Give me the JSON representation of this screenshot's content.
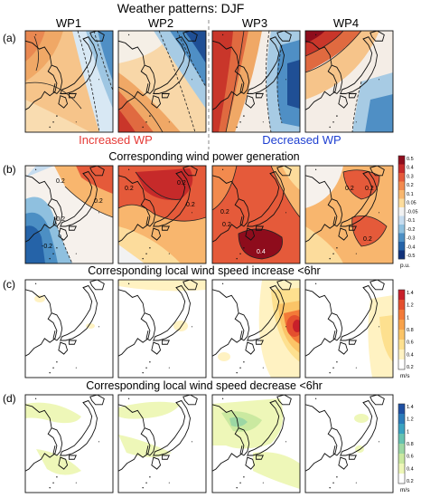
{
  "figure_title": "Weather patterns: DJF",
  "panel_letters": [
    "(a)",
    "(b)",
    "(c)",
    "(d)"
  ],
  "columns": [
    "WP1",
    "WP2",
    "WP3",
    "WP4"
  ],
  "group_labels": {
    "increased": "Increased WP",
    "decreased": "Decreased WP",
    "increased_color": "#e53935",
    "decreased_color": "#1e3fd1"
  },
  "row_titles": {
    "b": "Corresponding wind power generation",
    "c": "Corresponding local wind speed increase <6hr",
    "d": "Corresponding local wind speed decrease <6hr"
  },
  "colorbars": [
    {
      "row": "b",
      "unit": "p.u.",
      "ticks": [
        "0.5",
        "0.4",
        "0.3",
        "0.2",
        "0.1",
        "0.05",
        "-0.05",
        "-0.1",
        "-0.2",
        "-0.3",
        "-0.4",
        "-0.5"
      ],
      "colors": [
        "#8e0c1c",
        "#c62a2a",
        "#e55a3a",
        "#f28a4e",
        "#f8b66e",
        "#fcdc9c",
        "#f2f2f2",
        "#c6dcef",
        "#8fc0df",
        "#4c8fc4",
        "#2563a8",
        "#11317a"
      ]
    },
    {
      "row": "c",
      "unit": "m/s",
      "ticks": [
        "1.4",
        "1.2",
        "1",
        "0.8",
        "0.6",
        "0.4",
        "0.2"
      ],
      "colors": [
        "#c81f2a",
        "#e44f2e",
        "#f37a38",
        "#f8a24b",
        "#fbc467",
        "#fde08f",
        "#fff2c2",
        "#ffffff"
      ]
    },
    {
      "row": "d",
      "unit": "m/s",
      "ticks": [
        "1.4",
        "1.2",
        "1",
        "0.8",
        "0.6",
        "0.4",
        "0.2"
      ],
      "colors": [
        "#1f4fa2",
        "#2b7bba",
        "#3aa2c0",
        "#66c2b0",
        "#9cd7a4",
        "#cae9a0",
        "#eef7b8",
        "#ffffff"
      ]
    }
  ],
  "contour_labels": {
    "b_wp1": [
      "0.2",
      "0.2",
      "-0.2",
      "-0.2"
    ],
    "b_wp2": [
      "0.2",
      "0.2",
      "0.2"
    ],
    "b_wp3": [
      "0.2",
      "0.2",
      "0.4"
    ],
    "b_wp4": [
      "0.2",
      "0.2",
      "0.2"
    ]
  }
}
